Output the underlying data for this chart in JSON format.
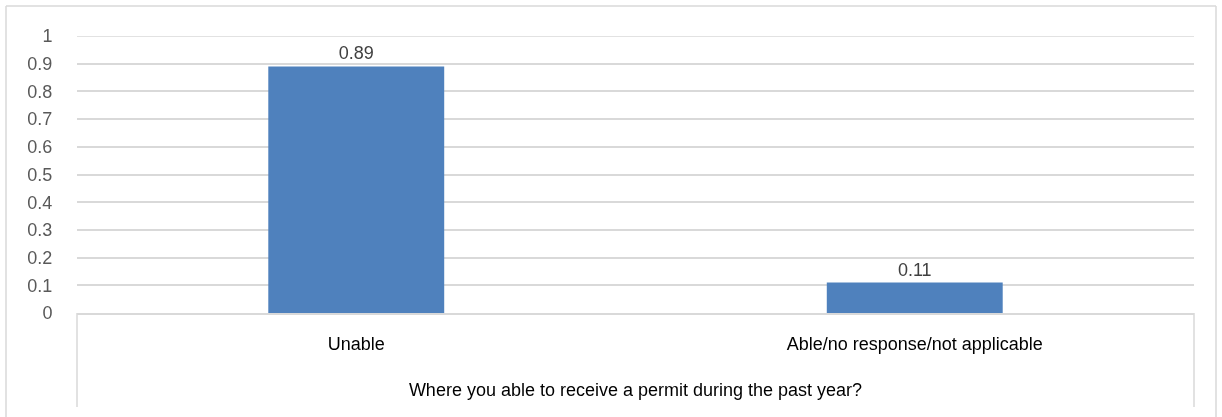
{
  "chart_data": {
    "type": "bar",
    "xlabel": "Where you able to receive a permit during the past year?",
    "categories": [
      "Unable",
      "Able/no response/not applicable"
    ],
    "values": [
      0.89,
      0.11
    ],
    "color": "#4f81bd",
    "ylim": [
      0,
      1
    ],
    "yticks": [
      0,
      0.1,
      0.2,
      0.3,
      0.4,
      0.5,
      0.6,
      0.7,
      0.8,
      0.9,
      1
    ],
    "grid": "y",
    "data_labels": true
  }
}
